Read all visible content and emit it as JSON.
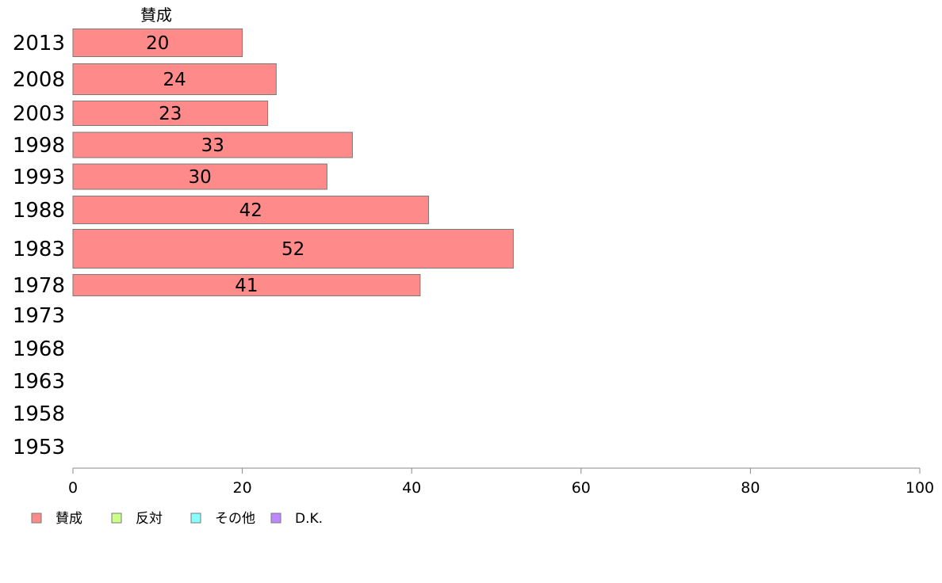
{
  "chart_data": {
    "type": "bar",
    "orientation": "horizontal",
    "stacked": true,
    "column_header": "賛成",
    "categories": [
      "2013",
      "2008",
      "2003",
      "1998",
      "1993",
      "1988",
      "1983",
      "1978",
      "1973",
      "1968",
      "1963",
      "1958",
      "1953"
    ],
    "series": [
      {
        "name": "賛成",
        "color": "#ff8a8a",
        "values": [
          20,
          24,
          23,
          33,
          30,
          42,
          52,
          41,
          null,
          null,
          null,
          null,
          null
        ]
      },
      {
        "name": "反対",
        "color": "#ccff88",
        "values": [
          null,
          null,
          null,
          null,
          null,
          null,
          null,
          null,
          null,
          null,
          null,
          null,
          null
        ]
      },
      {
        "name": "その他",
        "color": "#88ffff",
        "values": [
          null,
          null,
          null,
          null,
          null,
          null,
          null,
          null,
          null,
          null,
          null,
          null,
          null
        ]
      },
      {
        "name": "D.K.",
        "color": "#bb88ff",
        "values": [
          null,
          null,
          null,
          null,
          null,
          null,
          null,
          null,
          null,
          null,
          null,
          null,
          null
        ]
      }
    ],
    "xlim": [
      0,
      100
    ],
    "xticks": [
      "0",
      "20",
      "40",
      "60",
      "80",
      "100"
    ],
    "legend_position": "bottom-left",
    "grid": false
  }
}
